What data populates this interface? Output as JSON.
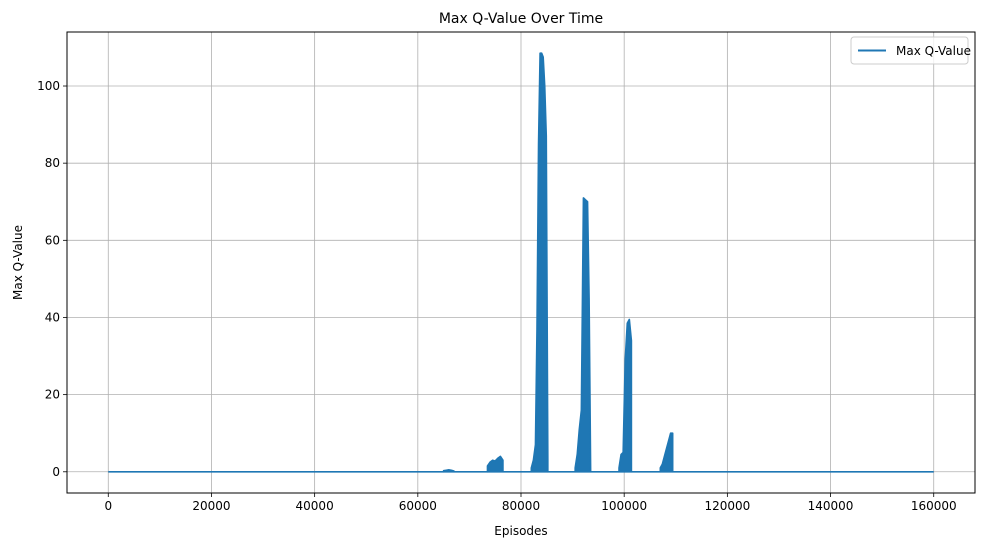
{
  "chart_data": {
    "type": "line",
    "title": "Max Q-Value Over Time",
    "xlabel": "Episodes",
    "ylabel": "Max Q-Value",
    "xlim": [
      -8000,
      168000
    ],
    "ylim": [
      -5.5,
      114
    ],
    "xticks": [
      0,
      20000,
      40000,
      60000,
      80000,
      100000,
      120000,
      140000,
      160000
    ],
    "yticks": [
      0,
      20,
      40,
      60,
      80,
      100
    ],
    "grid": true,
    "legend_position": "top-right",
    "line_color": "#1f77b4",
    "series": [
      {
        "name": "Max Q-Value",
        "baseline": 0,
        "segments": [
          {
            "x": [
              0,
              65000
            ],
            "y": [
              0,
              0
            ]
          },
          {
            "x": [
              65000,
              65500,
              66000,
              66500,
              67000
            ],
            "y": [
              0.3,
              0.4,
              0.5,
              0.4,
              0.2
            ]
          },
          {
            "x": [
              67000,
              73500
            ],
            "y": [
              0,
              0
            ]
          },
          {
            "x": [
              73500,
              74000,
              74500,
              75000,
              75500,
              76000,
              76500
            ],
            "y": [
              1.5,
              2.5,
              3.0,
              2.8,
              3.5,
              4.0,
              3.0
            ]
          },
          {
            "x": [
              76500,
              82000
            ],
            "y": [
              0,
              0
            ]
          },
          {
            "x": [
              82000,
              82400,
              82800,
              83100,
              83400,
              83700,
              84000,
              84300,
              84600,
              84900,
              85200
            ],
            "y": [
              1,
              3,
              7,
              37,
              85,
              108.5,
              108.5,
              107.5,
              100,
              87,
              3
            ]
          },
          {
            "x": [
              85200,
              90500
            ],
            "y": [
              0,
              0
            ]
          },
          {
            "x": [
              90500,
              90900,
              91300,
              91700,
              92100,
              92500,
              92900,
              93200,
              93500
            ],
            "y": [
              1,
              4.5,
              11,
              16,
              71,
              70.5,
              70,
              45,
              0
            ]
          },
          {
            "x": [
              93500,
              99000
            ],
            "y": [
              0,
              0
            ]
          },
          {
            "x": [
              99000,
              99400,
              99800,
              100200,
              100600,
              101000,
              101400
            ],
            "y": [
              1,
              4.5,
              5,
              29,
              38.5,
              39.5,
              34
            ]
          },
          {
            "x": [
              101400,
              107000
            ],
            "y": [
              0,
              0
            ]
          },
          {
            "x": [
              107000,
              107400,
              107800,
              108200,
              108600,
              109000,
              109400
            ],
            "y": [
              1,
              2,
              4,
              6,
              8,
              10,
              10
            ]
          },
          {
            "x": [
              109400,
              160000
            ],
            "y": [
              0,
              0
            ]
          }
        ]
      }
    ]
  }
}
